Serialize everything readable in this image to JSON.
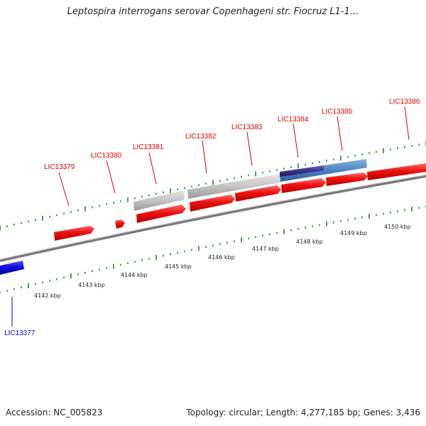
{
  "title": "Leptospira interrogans serovar Copenhageni str. Fiocruz L1-1...",
  "footer": {
    "accession": "Accession: NC_005823",
    "stats": "Topology: circular; Length: 4,277,185 bp; Genes: 3,436"
  },
  "colors": {
    "forward_gene": "#ee1111",
    "reverse_gene": "#1010dd",
    "forward_label": "#dd0000",
    "reverse_label": "#0000cc",
    "grey_feature": "#c0c0c0",
    "steel_feature": "#4a82c0",
    "purple_feature": "#3b2f8a",
    "backbone": "#777777",
    "tick": "#1a8a1a"
  },
  "scale_labels": [
    "4142 kbp",
    "4143 kbp",
    "4144 kbp",
    "4145 kbp",
    "4146 kbp",
    "4147 kbp",
    "4148 kbp",
    "4149 kbp",
    "4150 kbp"
  ],
  "gene_labels": [
    {
      "text": "LIC13377",
      "strand": "reverse"
    },
    {
      "text": "LIC13379",
      "strand": "forward"
    },
    {
      "text": "LIC13380",
      "strand": "forward"
    },
    {
      "text": "LIC13381",
      "strand": "forward"
    },
    {
      "text": "LIC13382",
      "strand": "forward"
    },
    {
      "text": "LIC13383",
      "strand": "forward"
    },
    {
      "text": "LIC13384",
      "strand": "forward"
    },
    {
      "text": "LIC13385",
      "strand": "forward"
    },
    {
      "text": "LIC13386",
      "strand": "forward"
    }
  ]
}
